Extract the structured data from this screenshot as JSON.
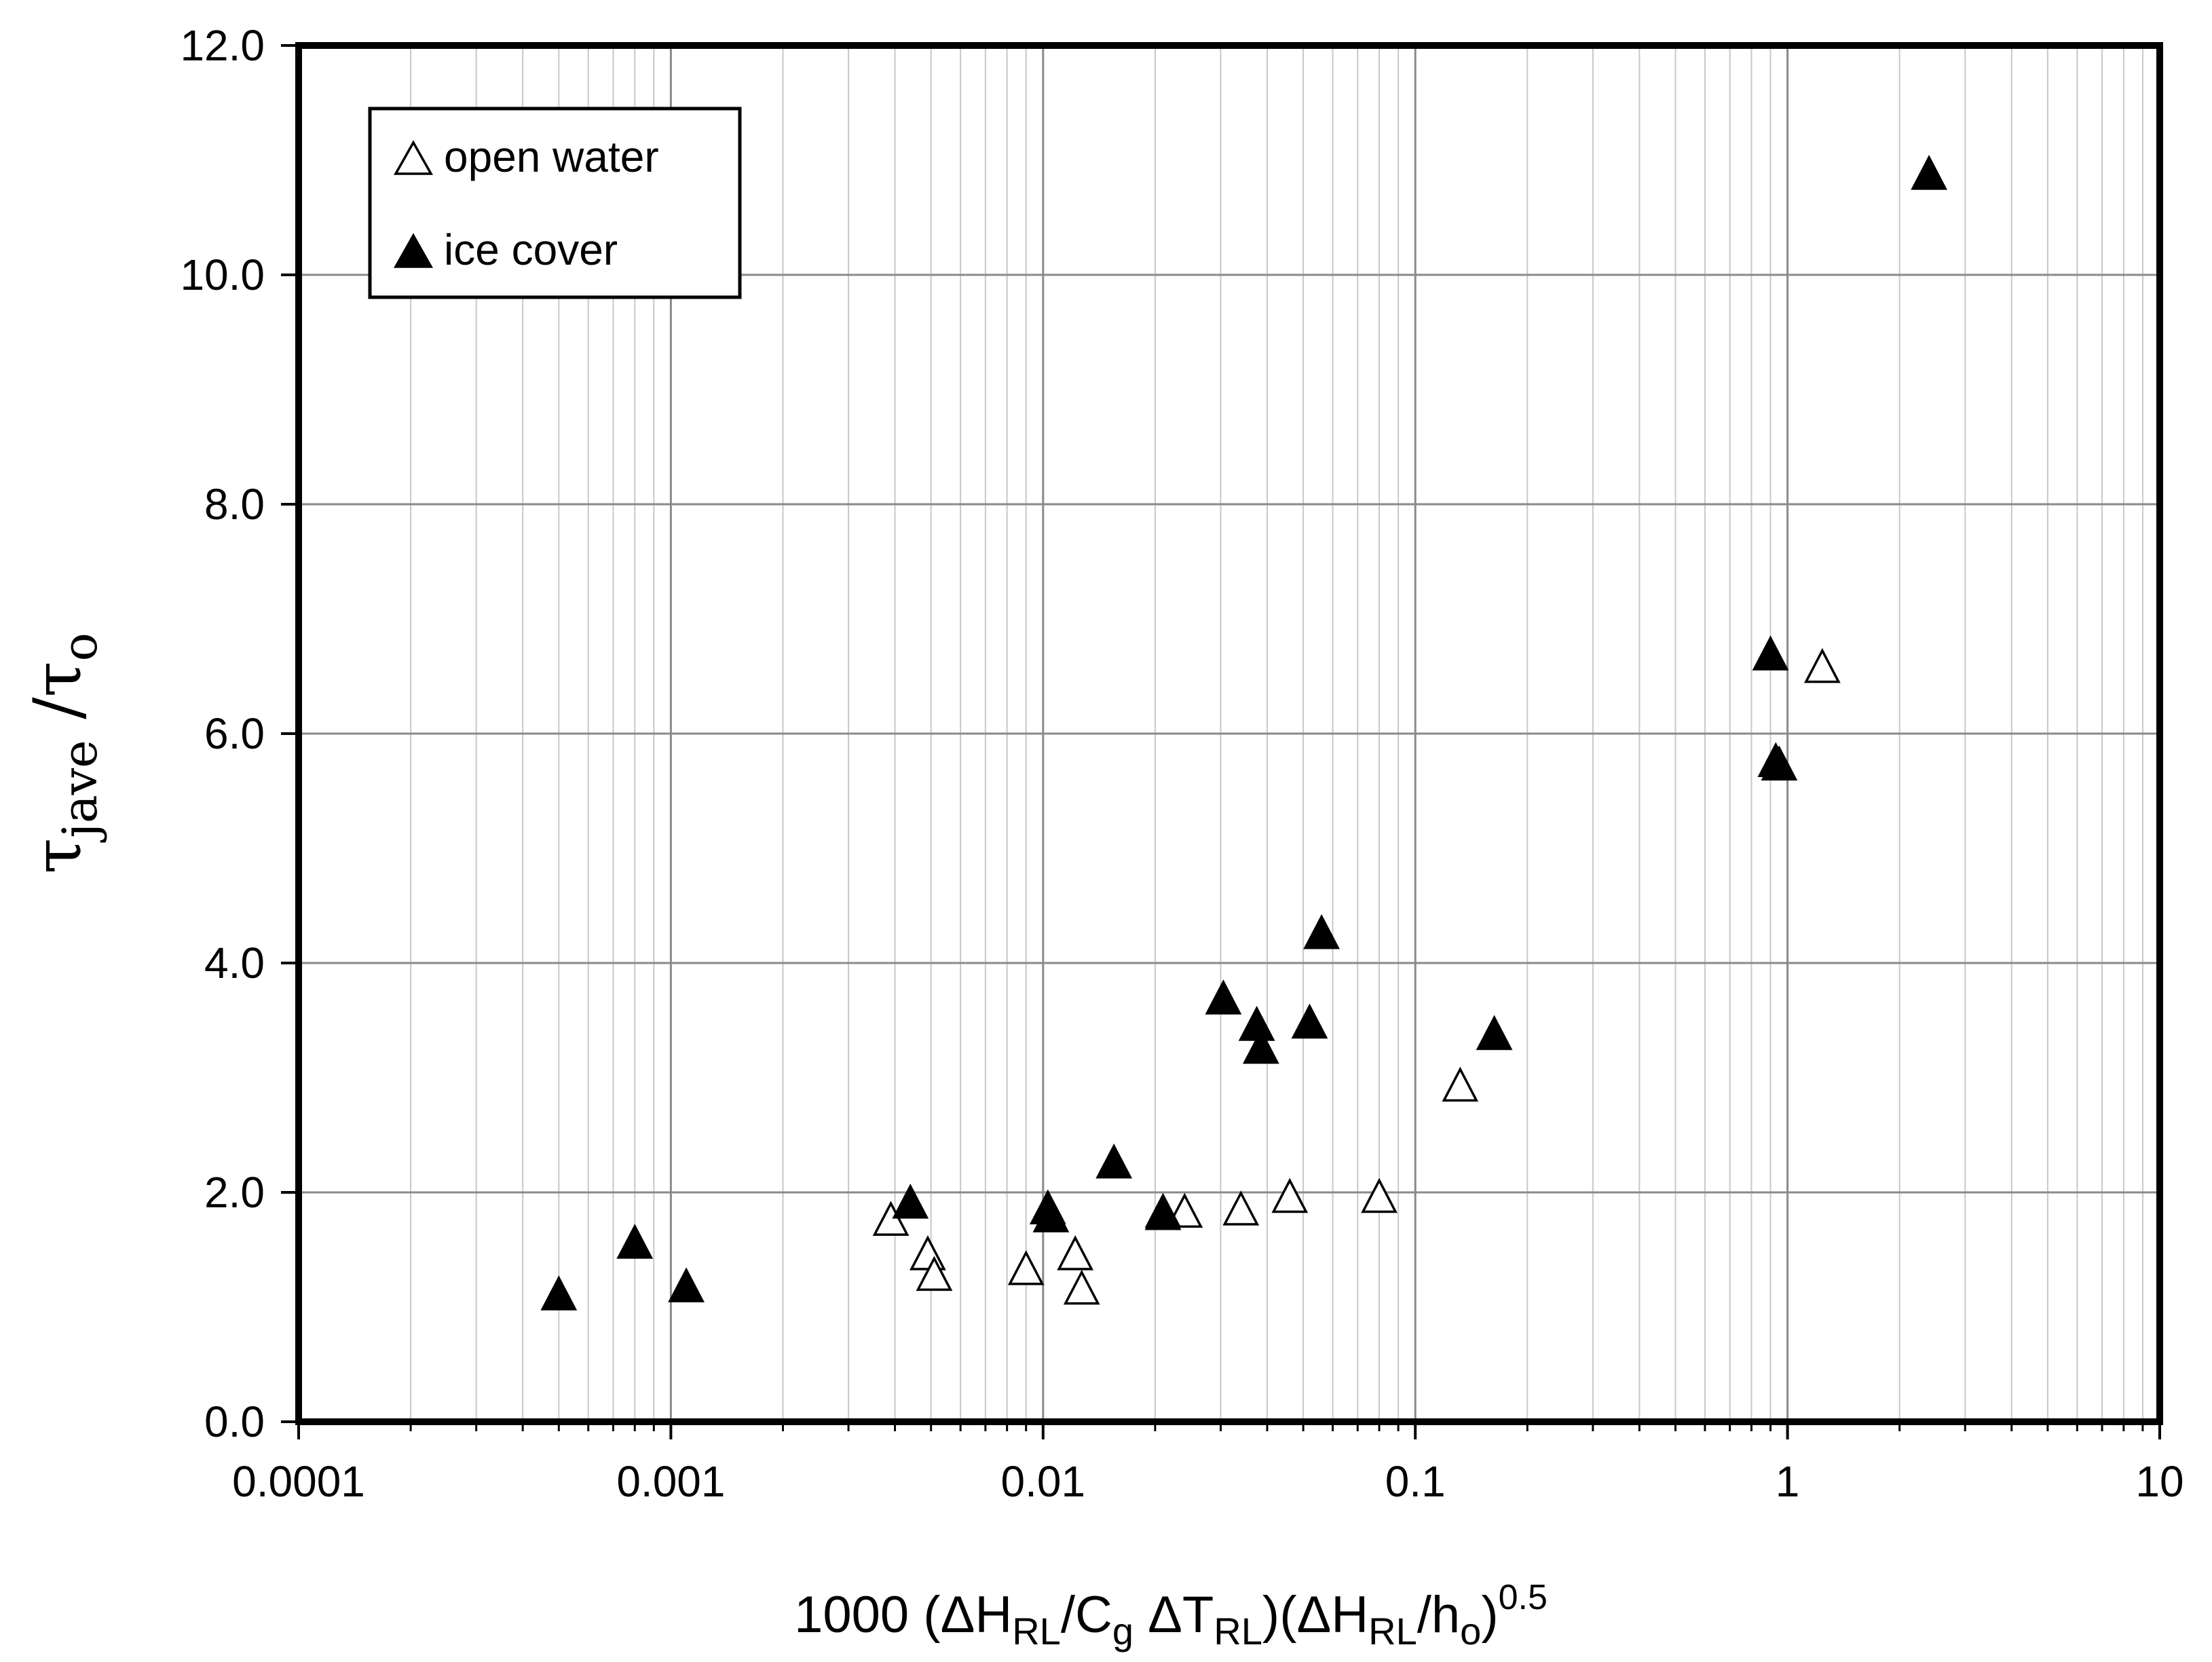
{
  "chart_data": {
    "type": "scatter",
    "x_scale": "log",
    "xlim": [
      0.0001,
      10
    ],
    "ylim": [
      0,
      12
    ],
    "grid": true,
    "legend_position": "top-left",
    "x_ticks": [
      "0.0001",
      "0.001",
      "0.01",
      "0.1",
      "1",
      "10"
    ],
    "y_ticks": [
      "0.0",
      "2.0",
      "4.0",
      "6.0",
      "8.0",
      "10.0",
      "12.0"
    ],
    "xlabel": {
      "prefix": "1000 (",
      "dh1": "ΔH",
      "sub1": "RL",
      "slash1": "/C",
      "sub2": "g",
      "dt": " ΔT",
      "sub3": "RL",
      "mid": ")(ΔH",
      "sub4": "RL",
      "slash2": "/h",
      "sub5": "o",
      "close": ")",
      "sup": "0.5"
    },
    "ylabel": {
      "tau1": "τ",
      "sub1": "jave",
      "slash": " /τ",
      "sub2": "o"
    },
    "series": [
      {
        "name": "open water",
        "marker": "open-triangle",
        "color": "#000000",
        "points": [
          [
            0.0039,
            1.75
          ],
          [
            0.0049,
            1.45
          ],
          [
            0.0051,
            1.27
          ],
          [
            0.009,
            1.32
          ],
          [
            0.0122,
            1.45
          ],
          [
            0.0127,
            1.15
          ],
          [
            0.021,
            1.8
          ],
          [
            0.024,
            1.82
          ],
          [
            0.034,
            1.84
          ],
          [
            0.046,
            1.95
          ],
          [
            0.08,
            1.95
          ],
          [
            0.132,
            2.92
          ],
          [
            1.24,
            6.57
          ]
        ]
      },
      {
        "name": "ice cover",
        "marker": "filled-triangle",
        "color": "#000000",
        "points": [
          [
            0.0005,
            1.1
          ],
          [
            0.0008,
            1.55
          ],
          [
            0.0011,
            1.17
          ],
          [
            0.0044,
            1.9
          ],
          [
            0.0103,
            1.85
          ],
          [
            0.0105,
            1.78
          ],
          [
            0.0155,
            2.25
          ],
          [
            0.021,
            1.82
          ],
          [
            0.0305,
            3.68
          ],
          [
            0.0375,
            3.45
          ],
          [
            0.0385,
            3.25
          ],
          [
            0.052,
            3.47
          ],
          [
            0.056,
            4.25
          ],
          [
            0.163,
            3.37
          ],
          [
            0.9,
            6.68
          ],
          [
            0.93,
            5.75
          ],
          [
            0.95,
            5.72
          ],
          [
            2.4,
            10.87
          ]
        ]
      }
    ]
  }
}
